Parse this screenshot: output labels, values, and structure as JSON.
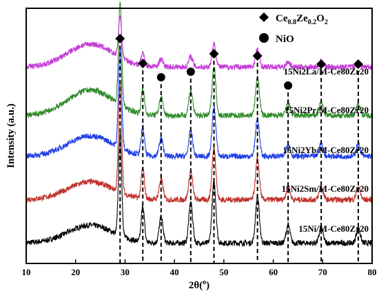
{
  "chart_data": {
    "type": "line",
    "xlabel_main": "2θ(",
    "xlabel_unit": "o",
    "xlabel_close": ")",
    "ylabel": "Intensity (a.u.)",
    "xlim": [
      10,
      80
    ],
    "x_ticks": [
      "10",
      "20",
      "30",
      "40",
      "50",
      "60",
      "70",
      "80"
    ],
    "legend": {
      "diamond": {
        "base": "Ce",
        "sub1": "0.8",
        "mid": "Ze",
        "sub2": "0.2",
        "o": "O",
        "sub3": "2"
      },
      "circle": "NiO"
    },
    "reference_lines": [
      {
        "x": 29.0,
        "marker": "diamond"
      },
      {
        "x": 33.6,
        "marker": "diamond"
      },
      {
        "x": 37.3,
        "marker": "circle"
      },
      {
        "x": 43.3,
        "marker": "circle"
      },
      {
        "x": 48.0,
        "marker": "diamond"
      },
      {
        "x": 56.8,
        "marker": "diamond"
      },
      {
        "x": 63.0,
        "marker": "circle"
      },
      {
        "x": 69.7,
        "marker": "diamond"
      },
      {
        "x": 77.2,
        "marker": "diamond"
      }
    ],
    "series": [
      {
        "name": "15Ni/M-Ce80Zr20",
        "color": "#000000",
        "baseline": 0.08,
        "hump": 0.07,
        "peaks": [
          [
            29.0,
            0.4
          ],
          [
            33.6,
            0.14
          ],
          [
            37.3,
            0.1
          ],
          [
            43.3,
            0.16
          ],
          [
            48.0,
            0.24
          ],
          [
            56.8,
            0.18
          ],
          [
            63.0,
            0.07
          ],
          [
            69.7,
            0.06
          ],
          [
            77.2,
            0.06
          ]
        ]
      },
      {
        "name": "15Ni2Sm/M-Ce80Zr20",
        "color": "#c0302a",
        "baseline": 0.25,
        "hump": 0.07,
        "peaks": [
          [
            29.0,
            0.42
          ],
          [
            33.6,
            0.12
          ],
          [
            37.3,
            0.08
          ],
          [
            43.3,
            0.11
          ],
          [
            48.0,
            0.2
          ],
          [
            56.8,
            0.16
          ],
          [
            63.0,
            0.05
          ],
          [
            69.7,
            0.05
          ],
          [
            77.2,
            0.05
          ]
        ]
      },
      {
        "name": "15Ni2Yb/M-Ce80Zr20",
        "color": "#1f3fe6",
        "baseline": 0.42,
        "hump": 0.08,
        "peaks": [
          [
            29.0,
            0.4
          ],
          [
            33.6,
            0.11
          ],
          [
            37.3,
            0.07
          ],
          [
            43.3,
            0.1
          ],
          [
            48.0,
            0.19
          ],
          [
            56.8,
            0.15
          ],
          [
            63.0,
            0.05
          ],
          [
            69.7,
            0.05
          ],
          [
            77.2,
            0.05
          ]
        ]
      },
      {
        "name": "15Ni2Pr/M-Ce80Zr20",
        "color": "#2f8a2a",
        "baseline": 0.58,
        "hump": 0.1,
        "peaks": [
          [
            29.0,
            0.4
          ],
          [
            33.6,
            0.1
          ],
          [
            37.3,
            0.07
          ],
          [
            43.3,
            0.1
          ],
          [
            48.0,
            0.19
          ],
          [
            56.8,
            0.15
          ],
          [
            63.0,
            0.05
          ],
          [
            69.7,
            0.05
          ],
          [
            77.2,
            0.05
          ]
        ]
      },
      {
        "name": "15Ni2La/M-Ce80Zr20",
        "color": "#c33ad6",
        "baseline": 0.77,
        "hump": 0.09,
        "peaks": [
          [
            29.0,
            0.16
          ],
          [
            33.6,
            0.05
          ],
          [
            37.3,
            0.03
          ],
          [
            43.3,
            0.04
          ],
          [
            48.0,
            0.09
          ],
          [
            56.8,
            0.07
          ],
          [
            63.0,
            0.02
          ],
          [
            69.7,
            0.02
          ],
          [
            77.2,
            0.02
          ]
        ]
      }
    ]
  }
}
